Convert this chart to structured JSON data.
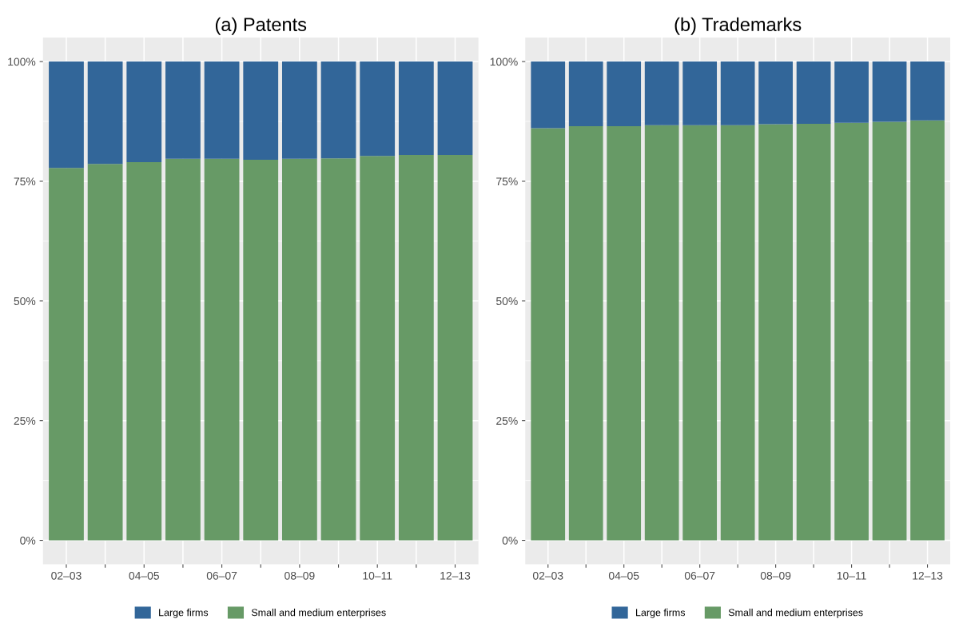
{
  "chart_data": [
    {
      "type": "bar",
      "title": "(a) Patents",
      "stacked": true,
      "grid": true,
      "legend": "bottom",
      "categories": [
        "02–03",
        null,
        "04–05",
        null,
        "06–07",
        null,
        "08–09",
        null,
        "10–11",
        null,
        "12–13"
      ],
      "series": [
        {
          "name": "Small and medium enterprises",
          "color": "#679a66",
          "values": [
            77.8,
            78.6,
            79.0,
            79.7,
            79.7,
            79.5,
            79.7,
            79.8,
            80.3,
            80.5,
            80.5
          ]
        },
        {
          "name": "Large firms",
          "color": "#326699",
          "values": [
            22.2,
            21.4,
            21.0,
            20.3,
            20.3,
            20.5,
            20.3,
            20.2,
            19.7,
            19.5,
            19.5
          ]
        }
      ],
      "ylim": [
        -5,
        105
      ],
      "yticks": [
        {
          "value": 0,
          "label": "0%"
        },
        {
          "value": 25,
          "label": "25%"
        },
        {
          "value": 50,
          "label": "50%"
        },
        {
          "value": 75,
          "label": "75%"
        },
        {
          "value": 100,
          "label": "100%"
        }
      ]
    },
    {
      "type": "bar",
      "title": "(b) Trademarks",
      "stacked": true,
      "grid": true,
      "legend": "bottom",
      "categories": [
        "02–03",
        null,
        "04–05",
        null,
        "06–07",
        null,
        "08–09",
        null,
        "10–11",
        null,
        "12–13"
      ],
      "series": [
        {
          "name": "Small and medium enterprises",
          "color": "#679a66",
          "values": [
            86.1,
            86.5,
            86.5,
            86.7,
            86.7,
            86.7,
            86.9,
            87.0,
            87.2,
            87.4,
            87.7
          ]
        },
        {
          "name": "Large firms",
          "color": "#326699",
          "values": [
            13.9,
            13.5,
            13.5,
            13.3,
            13.3,
            13.3,
            13.1,
            13.0,
            12.8,
            12.6,
            12.3
          ]
        }
      ],
      "ylim": [
        -5,
        105
      ],
      "yticks": [
        {
          "value": 0,
          "label": "0%"
        },
        {
          "value": 25,
          "label": "25%"
        },
        {
          "value": 50,
          "label": "50%"
        },
        {
          "value": 75,
          "label": "75%"
        },
        {
          "value": 100,
          "label": "100%"
        }
      ]
    }
  ]
}
